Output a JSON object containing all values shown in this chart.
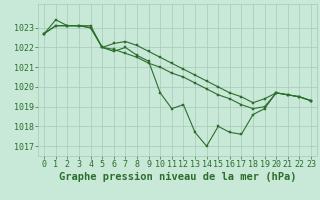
{
  "title": "Graphe pression niveau de la mer (hPa)",
  "bg_color": "#c8e8d8",
  "grid_color": "#a8c8b8",
  "line_color": "#2d6e2d",
  "xlim": [
    -0.5,
    23.5
  ],
  "ylim": [
    1016.5,
    1024.2
  ],
  "yticks": [
    1017,
    1018,
    1019,
    1020,
    1021,
    1022,
    1023
  ],
  "xticks": [
    0,
    1,
    2,
    3,
    4,
    5,
    6,
    7,
    8,
    9,
    10,
    11,
    12,
    13,
    14,
    15,
    16,
    17,
    18,
    19,
    20,
    21,
    22,
    23
  ],
  "series": [
    [
      1022.7,
      1023.4,
      1023.1,
      1023.1,
      1023.1,
      1022.0,
      1021.8,
      1022.0,
      1021.6,
      1021.3,
      1019.7,
      1018.9,
      1019.1,
      1017.7,
      1017.0,
      1018.0,
      1017.7,
      1017.6,
      1018.6,
      1018.9,
      1019.7,
      1019.6,
      1019.5,
      1019.3
    ],
    [
      1022.7,
      1023.1,
      1023.1,
      1023.1,
      1023.0,
      1022.0,
      1021.9,
      1021.7,
      1021.5,
      1021.2,
      1021.0,
      1020.7,
      1020.5,
      1020.2,
      1019.9,
      1019.6,
      1019.4,
      1019.1,
      1018.9,
      1019.0,
      1019.7,
      1019.6,
      1019.5,
      1019.3
    ],
    [
      1022.7,
      1023.1,
      1023.1,
      1023.1,
      1023.0,
      1022.0,
      1022.2,
      1022.3,
      1022.1,
      1021.8,
      1021.5,
      1021.2,
      1020.9,
      1020.6,
      1020.3,
      1020.0,
      1019.7,
      1019.5,
      1019.2,
      1019.4,
      1019.7,
      1019.6,
      1019.5,
      1019.3
    ]
  ],
  "title_fontsize": 7.5,
  "tick_fontsize": 6,
  "linewidth": 0.8,
  "markersize": 2.0
}
